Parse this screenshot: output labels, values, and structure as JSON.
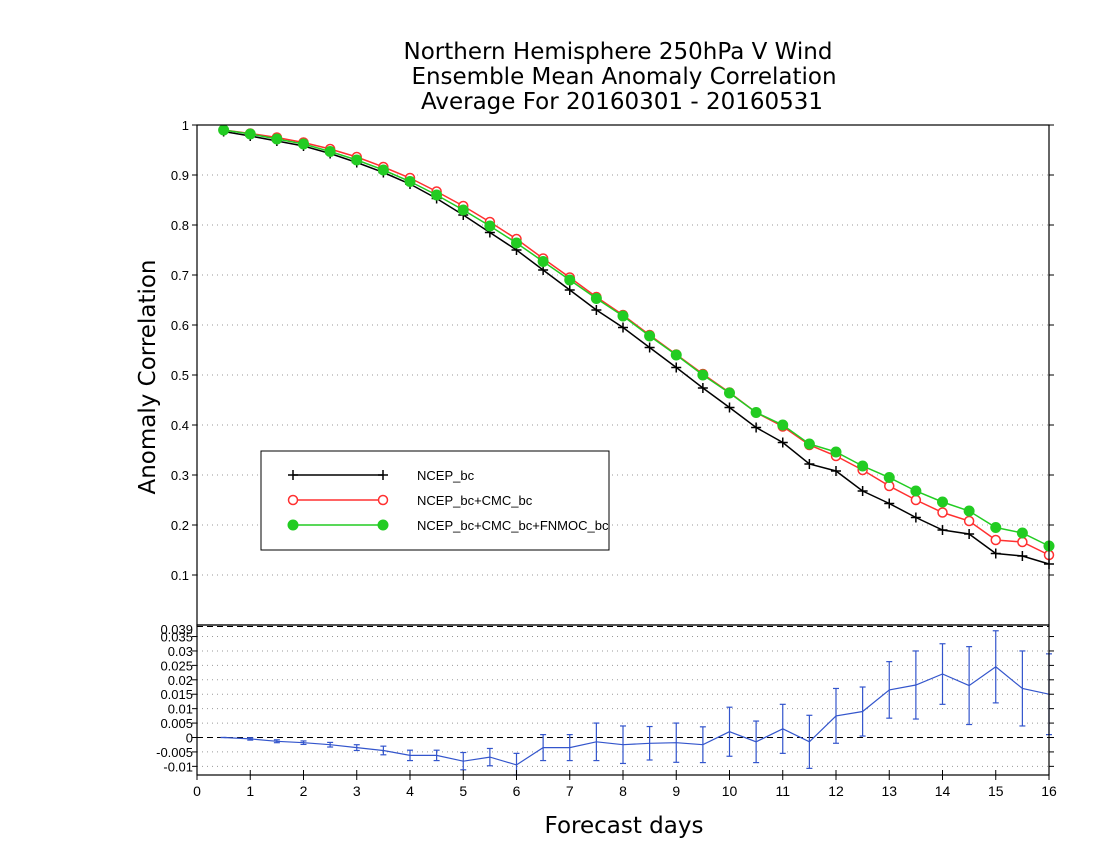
{
  "chart_data": [
    {
      "type": "line",
      "title": [
        "Northern Hemisphere 250hPa V Wind",
        "Ensemble Mean Anomaly Correlation",
        "Average For 20160301 - 20160531"
      ],
      "xlabel": "Forecast days",
      "ylabel": "Anomaly Correlation",
      "xlim": [
        0,
        16
      ],
      "ylim": [
        0,
        1
      ],
      "xticks": [
        "0",
        "1",
        "2",
        "3",
        "4",
        "5",
        "6",
        "7",
        "8",
        "9",
        "10",
        "11",
        "12",
        "13",
        "14",
        "15",
        "16"
      ],
      "yticks": [
        "0.1",
        "0.2",
        "0.3",
        "0.4",
        "0.5",
        "0.6",
        "0.7",
        "0.8",
        "0.9",
        "1"
      ],
      "grid": true,
      "legend_position": "lower-left",
      "x": [
        0.5,
        1,
        1.5,
        2,
        2.5,
        3,
        3.5,
        4,
        4.5,
        5,
        5.5,
        6,
        6.5,
        7,
        7.5,
        8,
        8.5,
        9,
        9.5,
        10,
        10.5,
        11,
        11.5,
        12,
        12.5,
        13,
        13.5,
        14,
        14.5,
        15,
        15.5,
        16
      ],
      "series": [
        {
          "name": "NCEP_bc",
          "color": "#000000",
          "marker": "plus",
          "values": [
            0.987,
            0.978,
            0.968,
            0.958,
            0.943,
            0.925,
            0.905,
            0.882,
            0.853,
            0.82,
            0.785,
            0.75,
            0.71,
            0.67,
            0.63,
            0.595,
            0.555,
            0.515,
            0.474,
            0.435,
            0.395,
            0.365,
            0.322,
            0.308,
            0.268,
            0.243,
            0.215,
            0.19,
            0.182,
            0.143,
            0.138,
            0.122
          ]
        },
        {
          "name": "NCEP_bc+CMC_bc",
          "color": "#ff3030",
          "marker": "open-circle",
          "values": [
            0.99,
            0.983,
            0.975,
            0.965,
            0.952,
            0.936,
            0.916,
            0.894,
            0.867,
            0.838,
            0.806,
            0.772,
            0.733,
            0.695,
            0.656,
            0.62,
            0.58,
            0.541,
            0.502,
            0.465,
            0.425,
            0.397,
            0.36,
            0.338,
            0.31,
            0.278,
            0.25,
            0.225,
            0.208,
            0.17,
            0.166,
            0.14
          ]
        },
        {
          "name": "NCEP_bc+CMC_bc+FNMOC_bc",
          "color": "#22cc22",
          "marker": "filled-circle",
          "values": [
            0.99,
            0.982,
            0.972,
            0.962,
            0.947,
            0.93,
            0.91,
            0.887,
            0.86,
            0.83,
            0.798,
            0.764,
            0.727,
            0.69,
            0.653,
            0.618,
            0.578,
            0.54,
            0.5,
            0.464,
            0.425,
            0.4,
            0.362,
            0.346,
            0.318,
            0.295,
            0.268,
            0.246,
            0.228,
            0.195,
            0.184,
            0.158
          ]
        }
      ]
    },
    {
      "type": "line",
      "xlim": [
        0,
        16
      ],
      "ylim": [
        -0.013,
        0.039
      ],
      "yticks": [
        "-0.01",
        "-0.005",
        "0",
        "0.005",
        "0.01",
        "0.015",
        "0.02",
        "0.025",
        "0.03",
        "0.035"
      ],
      "top_label": "0.039",
      "zero_line": true,
      "series": [
        {
          "color": "#3355cc",
          "marker": "error-bar",
          "x": [
            0.5,
            1,
            1.5,
            2,
            2.5,
            3,
            3.5,
            4,
            4.5,
            5,
            5.5,
            6,
            6.5,
            7,
            7.5,
            8,
            8.5,
            9,
            9.5,
            10,
            10.5,
            11,
            11.5,
            12,
            12.5,
            13,
            13.5,
            14,
            14.5,
            15,
            15.5,
            16
          ],
          "values": [
            0,
            -0.0005,
            -0.0013,
            -0.0018,
            -0.0025,
            -0.0035,
            -0.0045,
            -0.0062,
            -0.0062,
            -0.0082,
            -0.0068,
            -0.0095,
            -0.0035,
            -0.0035,
            -0.0015,
            -0.0025,
            -0.002,
            -0.0018,
            -0.0025,
            0.002,
            -0.0015,
            0.003,
            -0.0015,
            0.0075,
            0.009,
            0.0165,
            0.0182,
            0.022,
            0.018,
            0.0245,
            0.017,
            0.015
          ],
          "err": [
            0,
            0.0004,
            0.0005,
            0.0006,
            0.0008,
            0.001,
            0.0015,
            0.0018,
            0.0018,
            0.003,
            0.003,
            0.004,
            0.0045,
            0.0045,
            0.0065,
            0.0065,
            0.0058,
            0.0068,
            0.0062,
            0.0085,
            0.0072,
            0.0085,
            0.0092,
            0.0095,
            0.0085,
            0.0098,
            0.0118,
            0.0105,
            0.0135,
            0.0125,
            0.013,
            0.014
          ]
        }
      ]
    }
  ]
}
